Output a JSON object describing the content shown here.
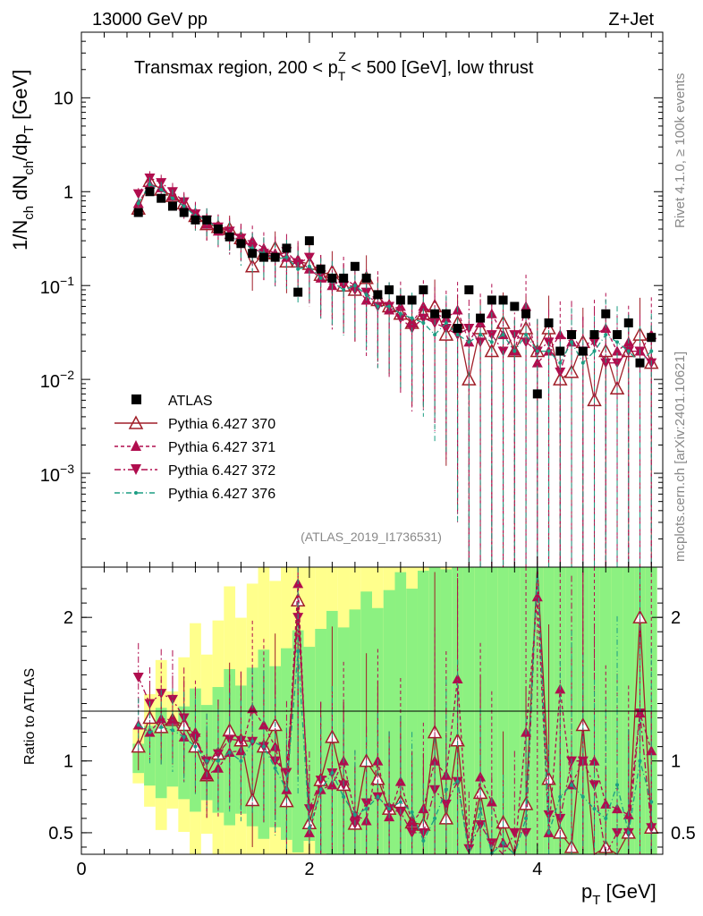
{
  "header": {
    "left": "13000 GeV pp",
    "right": "Z+Jet"
  },
  "side": {
    "rivet": "Rivet 4.1.0, ≥ 100k events",
    "mcplots": "mcplots.cern.ch [arXiv:2401.10621]"
  },
  "chart_data": {
    "type": "scatter",
    "title": "Transmax region, 200 < p_T^Z < 500 [GeV], low thrust",
    "title_parts": {
      "pre": "Transmax region, 200 < p",
      "sub": "T",
      "sup": "Z",
      "post": " < 500 [GeV], low thrust"
    },
    "analysis": "(ATLAS_2019_I1736531)",
    "xlabel": "p_T [GeV]",
    "xlabel_parts": {
      "main": "p",
      "sub": "T",
      "unit": " [GeV]"
    },
    "ylabel": "1/N_ch dN_ch/dp_T [GeV]",
    "ylabel_parts": {
      "a": "1/N",
      "a_sub": "ch",
      "b": " dN",
      "b_sub": "ch",
      "c": "/dp",
      "c_sub": "T",
      "d": " [GeV]"
    },
    "ratio_ylabel": "Ratio to ATLAS",
    "xlim": [
      0,
      5.1
    ],
    "ylim_log": [
      0.0001,
      50
    ],
    "ratio_ylim": [
      0.35,
      2.35
    ],
    "x_ticks": [
      0,
      2,
      4
    ],
    "y_ticks": [
      {
        "value": 0.001,
        "base": "10",
        "exp": "−3"
      },
      {
        "value": 0.01,
        "base": "10",
        "exp": "−2"
      },
      {
        "value": 0.1,
        "base": "10",
        "exp": "−1"
      },
      {
        "value": 1,
        "label": "1"
      },
      {
        "value": 10,
        "label": "10"
      }
    ],
    "ratio_ticks": [
      0.5,
      1,
      2
    ],
    "ratio_tick_labels": [
      "0.5",
      "1",
      "2"
    ],
    "x": [
      0.5,
      0.6,
      0.7,
      0.8,
      0.9,
      1.0,
      1.1,
      1.2,
      1.3,
      1.4,
      1.5,
      1.6,
      1.7,
      1.8,
      1.9,
      2.0,
      2.1,
      2.2,
      2.3,
      2.4,
      2.5,
      2.6,
      2.7,
      2.8,
      2.9,
      3.0,
      3.1,
      3.2,
      3.3,
      3.4,
      3.5,
      3.6,
      3.7,
      3.8,
      3.9,
      4.0,
      4.1,
      4.2,
      4.3,
      4.4,
      4.5,
      4.6,
      4.7,
      4.8,
      4.9,
      5.0
    ],
    "legend": [
      "ATLAS",
      "Pythia 6.427 370",
      "Pythia 6.427 371",
      "Pythia 6.427 372",
      "Pythia 6.427 376"
    ],
    "atlas": [
      0.6,
      1.0,
      0.85,
      0.7,
      0.6,
      0.5,
      0.5,
      0.4,
      0.33,
      0.28,
      0.22,
      0.2,
      0.2,
      0.25,
      0.085,
      0.3,
      0.15,
      0.12,
      0.12,
      0.16,
      0.12,
      0.08,
      0.09,
      0.07,
      0.07,
      0.09,
      0.05,
      0.05,
      0.035,
      0.09,
      0.045,
      0.07,
      0.07,
      0.06,
      0.05,
      0.007,
      0.04,
      0.02,
      0.03,
      0.02,
      0.03,
      0.05,
      0.03,
      0.04,
      0.015,
      0.028
    ],
    "series": [
      {
        "name": "Pythia 6.427 370",
        "color": "#a01e28",
        "values": [
          0.66,
          1.3,
          1.05,
          0.9,
          0.75,
          0.55,
          0.45,
          0.42,
          0.4,
          0.32,
          0.16,
          0.22,
          0.25,
          0.18,
          0.18,
          0.17,
          0.13,
          0.14,
          0.1,
          0.09,
          0.12,
          0.07,
          0.06,
          0.05,
          0.04,
          0.05,
          0.06,
          0.03,
          0.04,
          0.01,
          0.035,
          0.02,
          0.04,
          0.02,
          0.035,
          0.02,
          0.035,
          0.01,
          0.012,
          0.025,
          0.006,
          0.02,
          0.008,
          0.02,
          0.03,
          0.015
        ]
      },
      {
        "name": "Pythia 6.427 371",
        "color": "#b00d4e",
        "values": [
          0.75,
          1.2,
          1.1,
          0.9,
          0.7,
          0.6,
          0.45,
          0.38,
          0.35,
          0.3,
          0.3,
          0.25,
          0.22,
          0.2,
          0.19,
          0.15,
          0.12,
          0.1,
          0.12,
          0.1,
          0.07,
          0.08,
          0.055,
          0.06,
          0.04,
          0.06,
          0.05,
          0.045,
          0.055,
          0.025,
          0.04,
          0.05,
          0.03,
          0.02,
          0.06,
          0.015,
          0.02,
          0.03,
          0.025,
          0.02,
          0.03,
          0.035,
          0.02,
          0.025,
          0.02,
          0.03
        ]
      },
      {
        "name": "Pythia 6.427 372",
        "color": "#b00d4e",
        "values": [
          0.95,
          1.4,
          1.25,
          1.0,
          0.78,
          0.58,
          0.5,
          0.42,
          0.38,
          0.32,
          0.25,
          0.22,
          0.2,
          0.23,
          0.17,
          0.2,
          0.13,
          0.11,
          0.1,
          0.09,
          0.085,
          0.06,
          0.06,
          0.045,
          0.035,
          0.045,
          0.04,
          0.035,
          0.03,
          0.035,
          0.025,
          0.03,
          0.02,
          0.03,
          0.025,
          0.02,
          0.025,
          0.012,
          0.03,
          0.02,
          0.025,
          0.015,
          0.015,
          0.02,
          0.02,
          0.015
        ]
      },
      {
        "name": "Pythia 6.427 376",
        "color": "#1c9e83",
        "values": [
          0.75,
          1.2,
          1.05,
          0.85,
          0.7,
          0.55,
          0.5,
          0.4,
          0.35,
          0.28,
          0.25,
          0.22,
          0.19,
          0.2,
          0.15,
          0.16,
          0.12,
          0.11,
          0.09,
          0.1,
          0.08,
          0.06,
          0.06,
          0.05,
          0.045,
          0.04,
          0.03,
          0.04,
          0.03,
          0.025,
          0.03,
          0.025,
          0.03,
          0.02,
          0.03,
          0.02,
          0.02,
          0.015,
          0.025,
          0.015,
          0.02,
          0.03,
          0.025,
          0.02,
          0.015,
          0.02
        ]
      }
    ]
  }
}
